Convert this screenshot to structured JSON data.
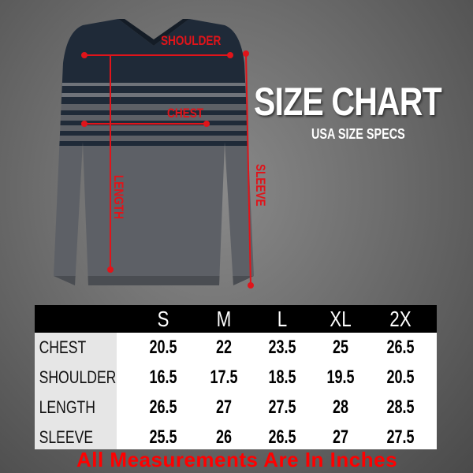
{
  "title": "SIZE CHART",
  "subtitle": "USA SIZE SPECS",
  "measure_labels": {
    "shoulder": "SHOULDER",
    "chest": "CHEST",
    "length": "LENGTH",
    "sleeve": "SLEEVE"
  },
  "colors": {
    "accent": "#e0141a",
    "sweater_top": "#1f2a38",
    "sweater_bottom": "#5d6066",
    "stripe": "#7a7d82"
  },
  "table": {
    "sizes": [
      "S",
      "M",
      "L",
      "XL",
      "2X"
    ],
    "rows": [
      {
        "label": "CHEST",
        "values": [
          "20.5",
          "22",
          "23.5",
          "25",
          "26.5"
        ]
      },
      {
        "label": "SHOULDER",
        "values": [
          "16.5",
          "17.5",
          "18.5",
          "19.5",
          "20.5"
        ]
      },
      {
        "label": "LENGTH",
        "values": [
          "26.5",
          "27",
          "27.5",
          "28",
          "28.5"
        ]
      },
      {
        "label": "SLEEVE",
        "values": [
          "25.5",
          "26",
          "26.5",
          "27",
          "27.5"
        ]
      }
    ]
  },
  "note": "All Measurements Are In Inches"
}
